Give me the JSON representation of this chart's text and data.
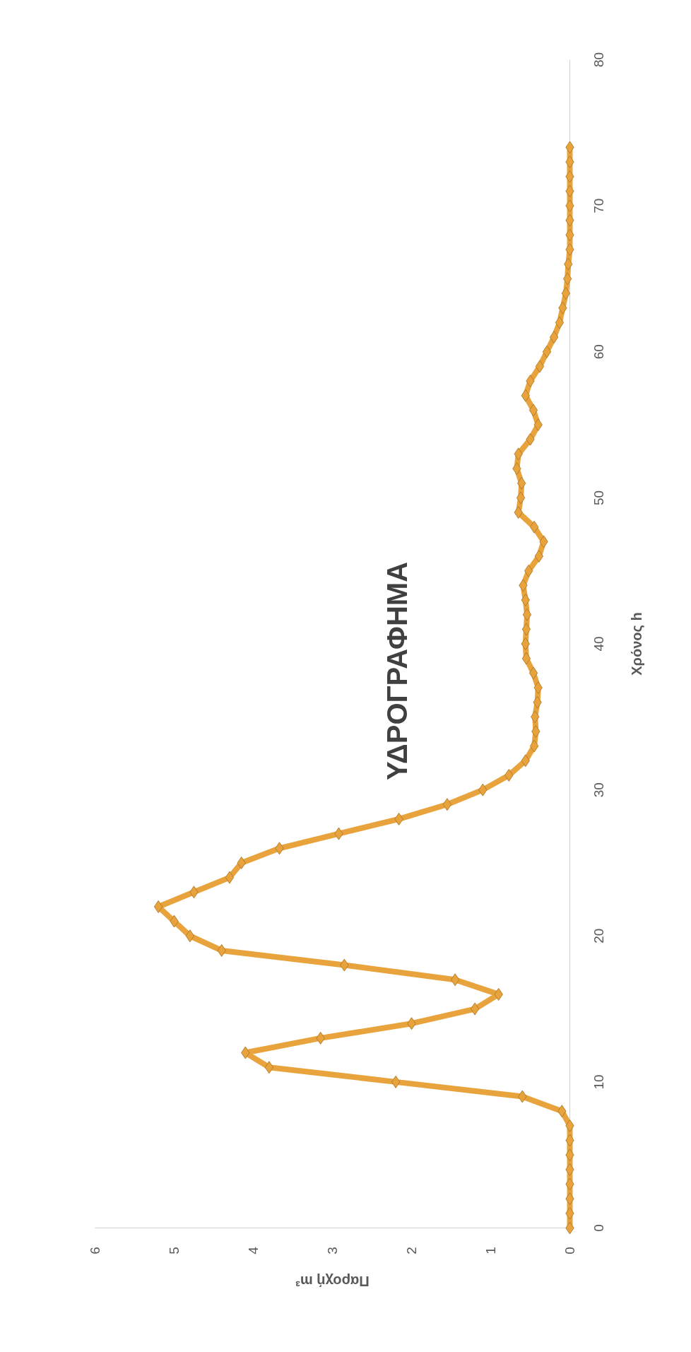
{
  "chart_data": {
    "type": "line",
    "title": "ΥΔΡΟΓΡΑΦΗΜΑ",
    "xlabel": "Παροχή m³",
    "ylabel": "Χρόνος h",
    "series": [
      {
        "color": "#e8a33c",
        "x": [
          0,
          0,
          0,
          0,
          0,
          0,
          0,
          0,
          0.1,
          0.6,
          2.2,
          3.8,
          4.1,
          3.15,
          2.0,
          1.2,
          0.9,
          1.45,
          2.85,
          4.4,
          4.8,
          5.0,
          5.2,
          4.75,
          4.3,
          4.15,
          3.67,
          2.92,
          2.16,
          1.55,
          1.1,
          0.77,
          0.56,
          0.45,
          0.43,
          0.44,
          0.41,
          0.4,
          0.46,
          0.55,
          0.56,
          0.55,
          0.54,
          0.56,
          0.59,
          0.52,
          0.39,
          0.33,
          0.45,
          0.65,
          0.62,
          0.61,
          0.67,
          0.65,
          0.5,
          0.4,
          0.46,
          0.56,
          0.5,
          0.38,
          0.29,
          0.2,
          0.13,
          0.09,
          0.05,
          0.03,
          0.02,
          0,
          0,
          0,
          0,
          0,
          0,
          0,
          0
        ],
        "values": [
          0,
          1,
          2,
          3,
          4,
          5,
          6,
          7,
          8,
          9,
          10,
          11,
          12,
          13,
          14,
          15,
          16,
          17,
          18,
          19,
          20,
          21,
          22,
          23,
          24,
          25,
          26,
          27,
          28,
          29,
          30,
          31,
          32,
          33,
          34,
          35,
          36,
          37,
          38,
          39,
          40,
          41,
          42,
          43,
          44,
          45,
          46,
          47,
          48,
          49,
          50,
          51,
          52,
          53,
          54,
          55,
          56,
          57,
          58,
          59,
          60,
          61,
          62,
          63,
          64,
          65,
          66,
          67,
          68,
          69,
          70,
          71,
          72,
          73,
          74
        ]
      }
    ],
    "xlim": [
      6,
      0
    ],
    "xticks": [
      0,
      1,
      2,
      3,
      4,
      5,
      6
    ],
    "ylim": [
      0,
      80
    ],
    "yticks": [
      0,
      10,
      20,
      30,
      40,
      50,
      60,
      70,
      80
    ],
    "marker": "diamond",
    "line_style": "solid"
  }
}
